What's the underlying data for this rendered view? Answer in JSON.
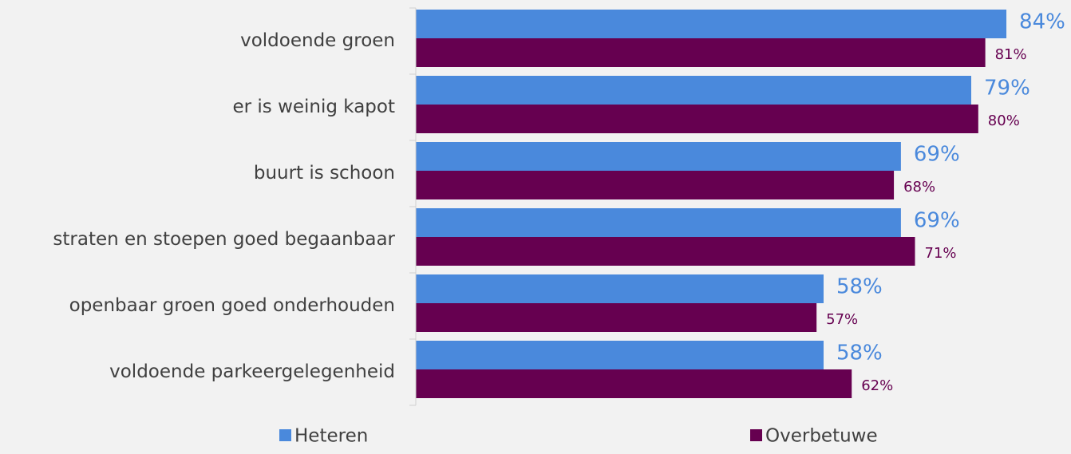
{
  "chart_data": {
    "type": "bar",
    "orientation": "horizontal",
    "categories": [
      "voldoende groen",
      "er is weinig kapot",
      "buurt is schoon",
      "straten en stoepen goed begaanbaar",
      "openbaar groen goed onderhouden",
      "voldoende parkeergelegenheid"
    ],
    "series": [
      {
        "name": "Heteren",
        "color": "#4a89dc",
        "values": [
          84,
          79,
          69,
          69,
          58,
          58
        ],
        "value_labels": [
          "84%",
          "79%",
          "69%",
          "69%",
          "58%",
          "58%"
        ]
      },
      {
        "name": "Overbetuwe",
        "color": "#660050",
        "values": [
          81,
          80,
          68,
          71,
          57,
          62
        ],
        "value_labels": [
          "81%",
          "80%",
          "68%",
          "71%",
          "57%",
          "62%"
        ]
      }
    ],
    "xlim": [
      0,
      90
    ],
    "legend": "bottom"
  }
}
